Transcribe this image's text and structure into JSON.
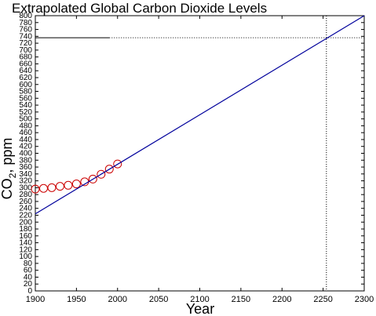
{
  "chart_data": {
    "type": "scatter",
    "title": "Extrapolated Global Carbon Dioxide Levels",
    "xlabel": "Year",
    "ylabel": "CO",
    "ylabel_subscript": "2",
    "ylabel_unit": ", ppm",
    "xlim": [
      1900,
      2300
    ],
    "ylim": [
      0,
      800
    ],
    "x_ticks": [
      1900,
      1950,
      2000,
      2050,
      2100,
      2150,
      2200,
      2250,
      2300
    ],
    "y_ticks": [
      0,
      20,
      40,
      60,
      80,
      100,
      120,
      140,
      160,
      180,
      200,
      220,
      240,
      260,
      280,
      300,
      320,
      340,
      360,
      380,
      400,
      420,
      440,
      460,
      480,
      500,
      520,
      540,
      560,
      580,
      600,
      620,
      640,
      660,
      680,
      700,
      720,
      740,
      760,
      780,
      800
    ],
    "grid": false,
    "series": [
      {
        "kind": "points",
        "marker": "open-circle",
        "color": "#cc0000",
        "x": [
          1900,
          1910,
          1920,
          1930,
          1940,
          1950,
          1960,
          1970,
          1980,
          1990,
          2000
        ],
        "y": [
          296,
          298,
          300,
          304,
          307,
          311,
          317,
          325,
          339,
          354,
          369
        ]
      },
      {
        "kind": "line",
        "color": "#00009c",
        "x": [
          1900,
          2300
        ],
        "y": [
          224,
          800
        ]
      }
    ],
    "annotations": {
      "horizontal_level": 736,
      "vertical_year": 2254,
      "color": "#000000",
      "style_left_segment": "solid",
      "left_segment_end_x": 1990
    }
  }
}
